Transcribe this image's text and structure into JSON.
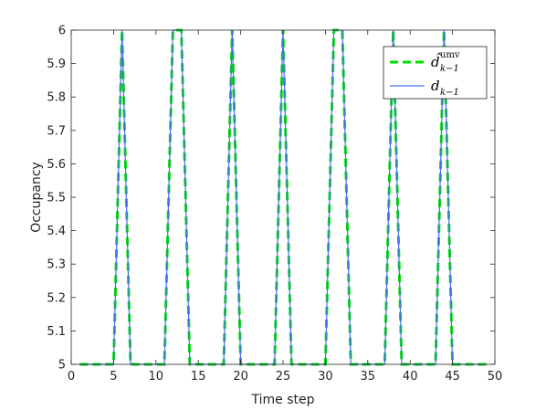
{
  "chart_data": {
    "type": "line",
    "xlabel": "Time step",
    "ylabel": "Occupancy",
    "xlim": [
      0,
      50
    ],
    "ylim": [
      5,
      6
    ],
    "xticks": [
      0,
      5,
      10,
      15,
      20,
      25,
      30,
      35,
      40,
      45,
      50
    ],
    "yticks": [
      5,
      5.1,
      5.2,
      5.3,
      5.4,
      5.5,
      5.6,
      5.7,
      5.8,
      5.9,
      6
    ],
    "grid": false,
    "legend_position": "top-right",
    "series": [
      {
        "name": "d̂_{k−1}^{umv}",
        "legend_main": "d̂",
        "legend_sub": "k−1",
        "legend_sup": "umv",
        "color": "#00e000",
        "style": "dashed",
        "x": [
          1,
          2,
          3,
          4,
          5,
          6,
          7,
          8,
          9,
          10,
          11,
          12,
          13,
          14,
          15,
          16,
          17,
          18,
          19,
          20,
          21,
          22,
          23,
          24,
          25,
          26,
          27,
          28,
          29,
          30,
          31,
          32,
          33,
          34,
          35,
          36,
          37,
          38,
          39,
          40,
          41,
          42,
          43,
          44,
          45,
          46,
          47,
          48,
          49
        ],
        "y": [
          5,
          5,
          5,
          5,
          5,
          6,
          5,
          5,
          5,
          5,
          5,
          6,
          6,
          5,
          5,
          5,
          5,
          5,
          6,
          5,
          5,
          5,
          5,
          5,
          6,
          5,
          5,
          5,
          5,
          5,
          6,
          6,
          5,
          5,
          5,
          5,
          5,
          6,
          5,
          5,
          5,
          5,
          5,
          6,
          5,
          5,
          5,
          5,
          5
        ]
      },
      {
        "name": "d_{k−1}",
        "legend_main": "d",
        "legend_sub": "k−1",
        "legend_sup": "",
        "color": "#4a6cf7",
        "style": "solid",
        "x": [
          1,
          2,
          3,
          4,
          5,
          6,
          7,
          8,
          9,
          10,
          11,
          12,
          13,
          14,
          15,
          16,
          17,
          18,
          19,
          20,
          21,
          22,
          23,
          24,
          25,
          26,
          27,
          28,
          29,
          30,
          31,
          32,
          33,
          34,
          35,
          36,
          37,
          38,
          39,
          40,
          41,
          42,
          43,
          44,
          45,
          46,
          47,
          48,
          49
        ],
        "y": [
          5,
          5,
          5,
          5,
          5,
          6,
          5,
          5,
          5,
          5,
          5,
          6,
          6,
          5,
          5,
          5,
          5,
          5,
          6,
          5,
          5,
          5,
          5,
          5,
          6,
          5,
          5,
          5,
          5,
          5,
          6,
          6,
          5,
          5,
          5,
          5,
          5,
          6,
          5,
          5,
          5,
          5,
          5,
          6,
          5,
          5,
          5,
          5,
          5
        ]
      }
    ]
  }
}
